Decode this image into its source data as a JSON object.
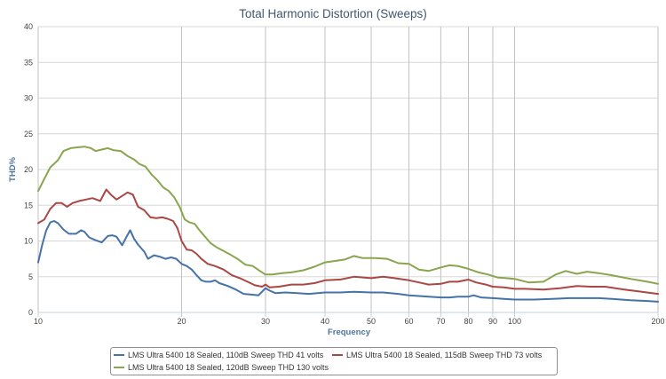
{
  "chart_data": {
    "type": "line",
    "title": "Total Harmonic Distortion (Sweeps)",
    "xlabel": "Frequency",
    "ylabel": "THD%",
    "xscale": "log",
    "xlim": [
      10,
      200
    ],
    "ylim": [
      0,
      40
    ],
    "x_ticks": [
      10,
      20,
      30,
      40,
      50,
      60,
      70,
      80,
      90,
      100,
      200
    ],
    "y_ticks": [
      0,
      5,
      10,
      15,
      20,
      25,
      30,
      35,
      40
    ],
    "grid": true,
    "legend_position": "bottom-center",
    "series": [
      {
        "name": "LMS Ultra 5400 18 Sealed, 110dB Sweep THD 41 volts",
        "color": "#4572a7",
        "points": [
          [
            10,
            7.0
          ],
          [
            10.2,
            9.5
          ],
          [
            10.4,
            11.5
          ],
          [
            10.6,
            12.6
          ],
          [
            10.8,
            12.8
          ],
          [
            11.0,
            12.5
          ],
          [
            11.3,
            11.6
          ],
          [
            11.6,
            11.0
          ],
          [
            12.0,
            11.0
          ],
          [
            12.3,
            11.5
          ],
          [
            12.5,
            11.3
          ],
          [
            12.8,
            10.5
          ],
          [
            13.2,
            10.1
          ],
          [
            13.6,
            9.8
          ],
          [
            14.0,
            10.7
          ],
          [
            14.3,
            10.8
          ],
          [
            14.6,
            10.6
          ],
          [
            15.0,
            9.4
          ],
          [
            15.3,
            10.5
          ],
          [
            15.6,
            11.5
          ],
          [
            15.9,
            10.3
          ],
          [
            16.2,
            9.5
          ],
          [
            16.7,
            8.5
          ],
          [
            17.0,
            7.5
          ],
          [
            17.5,
            8.0
          ],
          [
            18.0,
            7.8
          ],
          [
            18.5,
            7.5
          ],
          [
            19.0,
            7.7
          ],
          [
            19.5,
            7.5
          ],
          [
            20.0,
            6.8
          ],
          [
            20.5,
            6.5
          ],
          [
            21.0,
            6.0
          ],
          [
            21.5,
            5.2
          ],
          [
            22.0,
            4.5
          ],
          [
            22.5,
            4.3
          ],
          [
            23.0,
            4.3
          ],
          [
            23.5,
            4.5
          ],
          [
            24.0,
            4.1
          ],
          [
            25.0,
            3.7
          ],
          [
            26.0,
            3.2
          ],
          [
            27.0,
            2.6
          ],
          [
            28.0,
            2.5
          ],
          [
            29.0,
            2.4
          ],
          [
            29.5,
            2.9
          ],
          [
            30.0,
            3.4
          ],
          [
            30.5,
            3.1
          ],
          [
            31.5,
            2.7
          ],
          [
            33.0,
            2.8
          ],
          [
            35.0,
            2.7
          ],
          [
            37.0,
            2.6
          ],
          [
            40.0,
            2.8
          ],
          [
            43.0,
            2.8
          ],
          [
            46.0,
            2.9
          ],
          [
            50.0,
            2.8
          ],
          [
            53.0,
            2.8
          ],
          [
            57.0,
            2.6
          ],
          [
            60.0,
            2.4
          ],
          [
            63.0,
            2.3
          ],
          [
            66.0,
            2.2
          ],
          [
            70.0,
            2.1
          ],
          [
            73.0,
            2.1
          ],
          [
            76.0,
            2.2
          ],
          [
            80.0,
            2.2
          ],
          [
            82.0,
            2.4
          ],
          [
            85.0,
            2.1
          ],
          [
            90.0,
            2.0
          ],
          [
            95.0,
            1.9
          ],
          [
            100.0,
            1.8
          ],
          [
            110.0,
            1.8
          ],
          [
            120.0,
            1.9
          ],
          [
            130.0,
            2.0
          ],
          [
            140.0,
            2.0
          ],
          [
            150.0,
            2.0
          ],
          [
            160.0,
            1.9
          ],
          [
            175.0,
            1.7
          ],
          [
            190.0,
            1.6
          ],
          [
            200.0,
            1.5
          ]
        ]
      },
      {
        "name": "LMS Ultra 5400 18 Sealed, 115dB Sweep THD 73 volts",
        "color": "#aa4643",
        "points": [
          [
            10,
            12.5
          ],
          [
            10.3,
            13.0
          ],
          [
            10.6,
            14.5
          ],
          [
            10.9,
            15.3
          ],
          [
            11.2,
            15.3
          ],
          [
            11.5,
            14.8
          ],
          [
            11.8,
            15.3
          ],
          [
            12.2,
            15.6
          ],
          [
            12.6,
            15.8
          ],
          [
            13.0,
            16.0
          ],
          [
            13.5,
            15.6
          ],
          [
            13.9,
            17.2
          ],
          [
            14.2,
            16.5
          ],
          [
            14.6,
            15.8
          ],
          [
            15.0,
            16.3
          ],
          [
            15.4,
            16.8
          ],
          [
            15.8,
            16.5
          ],
          [
            16.2,
            14.8
          ],
          [
            16.7,
            14.3
          ],
          [
            17.2,
            13.3
          ],
          [
            17.7,
            13.2
          ],
          [
            18.2,
            13.3
          ],
          [
            18.7,
            13.1
          ],
          [
            19.2,
            12.8
          ],
          [
            19.6,
            11.8
          ],
          [
            20.0,
            10.0
          ],
          [
            20.5,
            8.8
          ],
          [
            21.0,
            8.7
          ],
          [
            21.5,
            8.2
          ],
          [
            22.0,
            7.5
          ],
          [
            22.7,
            6.8
          ],
          [
            23.5,
            6.5
          ],
          [
            24.5,
            6.0
          ],
          [
            25.5,
            5.2
          ],
          [
            26.5,
            4.8
          ],
          [
            27.5,
            4.3
          ],
          [
            28.5,
            3.8
          ],
          [
            29.5,
            3.6
          ],
          [
            30.0,
            3.9
          ],
          [
            30.6,
            3.5
          ],
          [
            32.0,
            3.6
          ],
          [
            34.0,
            3.9
          ],
          [
            36.0,
            3.9
          ],
          [
            38.0,
            4.1
          ],
          [
            40.0,
            4.5
          ],
          [
            43.0,
            4.6
          ],
          [
            46.0,
            5.0
          ],
          [
            50.0,
            4.8
          ],
          [
            53.0,
            5.0
          ],
          [
            56.0,
            4.8
          ],
          [
            60.0,
            4.5
          ],
          [
            63.0,
            4.2
          ],
          [
            66.0,
            3.9
          ],
          [
            70.0,
            4.0
          ],
          [
            73.0,
            4.3
          ],
          [
            76.0,
            4.3
          ],
          [
            80.0,
            4.6
          ],
          [
            83.0,
            4.2
          ],
          [
            87.0,
            3.9
          ],
          [
            90.0,
            3.6
          ],
          [
            95.0,
            3.5
          ],
          [
            100.0,
            3.3
          ],
          [
            105.0,
            3.3
          ],
          [
            115.0,
            3.2
          ],
          [
            125.0,
            3.4
          ],
          [
            135.0,
            3.7
          ],
          [
            145.0,
            3.6
          ],
          [
            155.0,
            3.6
          ],
          [
            170.0,
            3.2
          ],
          [
            185.0,
            2.9
          ],
          [
            200.0,
            2.6
          ]
        ]
      },
      {
        "name": "LMS Ultra 5400 18 Sealed, 120dB Sweep THD 130 volts",
        "color": "#89a54e",
        "points": [
          [
            10,
            17.0
          ],
          [
            10.3,
            18.7
          ],
          [
            10.6,
            20.3
          ],
          [
            11.0,
            21.3
          ],
          [
            11.3,
            22.6
          ],
          [
            11.7,
            23.0
          ],
          [
            12.1,
            23.1
          ],
          [
            12.5,
            23.2
          ],
          [
            12.9,
            23.0
          ],
          [
            13.2,
            22.6
          ],
          [
            13.6,
            22.8
          ],
          [
            14.0,
            23.0
          ],
          [
            14.4,
            22.7
          ],
          [
            14.9,
            22.6
          ],
          [
            15.4,
            21.9
          ],
          [
            15.9,
            21.4
          ],
          [
            16.3,
            20.8
          ],
          [
            16.8,
            20.4
          ],
          [
            17.3,
            19.3
          ],
          [
            17.8,
            18.5
          ],
          [
            18.3,
            17.5
          ],
          [
            18.8,
            17.0
          ],
          [
            19.3,
            16.1
          ],
          [
            19.8,
            14.8
          ],
          [
            20.3,
            13.0
          ],
          [
            20.8,
            12.6
          ],
          [
            21.3,
            12.4
          ],
          [
            21.8,
            11.5
          ],
          [
            22.4,
            10.6
          ],
          [
            23.0,
            9.7
          ],
          [
            23.7,
            9.1
          ],
          [
            24.5,
            8.6
          ],
          [
            25.3,
            8.1
          ],
          [
            26.2,
            7.5
          ],
          [
            27.2,
            6.7
          ],
          [
            28.2,
            6.5
          ],
          [
            29.2,
            5.8
          ],
          [
            30.0,
            5.3
          ],
          [
            31.0,
            5.3
          ],
          [
            32.5,
            5.5
          ],
          [
            34.0,
            5.6
          ],
          [
            36.0,
            5.9
          ],
          [
            38.0,
            6.4
          ],
          [
            40.0,
            7.0
          ],
          [
            42.0,
            7.2
          ],
          [
            44.0,
            7.4
          ],
          [
            46.0,
            7.9
          ],
          [
            48.0,
            7.6
          ],
          [
            51.0,
            7.6
          ],
          [
            54.0,
            7.5
          ],
          [
            57.0,
            6.9
          ],
          [
            60.0,
            6.8
          ],
          [
            63.0,
            6.0
          ],
          [
            66.0,
            5.8
          ],
          [
            70.0,
            6.3
          ],
          [
            73.0,
            6.6
          ],
          [
            76.0,
            6.5
          ],
          [
            80.0,
            6.1
          ],
          [
            84.0,
            5.6
          ],
          [
            88.0,
            5.3
          ],
          [
            92.0,
            4.9
          ],
          [
            96.0,
            4.8
          ],
          [
            100.0,
            4.7
          ],
          [
            107.0,
            4.2
          ],
          [
            115.0,
            4.3
          ],
          [
            122.0,
            5.3
          ],
          [
            128.0,
            5.8
          ],
          [
            135.0,
            5.4
          ],
          [
            142.0,
            5.7
          ],
          [
            150.0,
            5.5
          ],
          [
            160.0,
            5.2
          ],
          [
            175.0,
            4.7
          ],
          [
            190.0,
            4.3
          ],
          [
            200.0,
            4.0
          ]
        ]
      }
    ]
  }
}
